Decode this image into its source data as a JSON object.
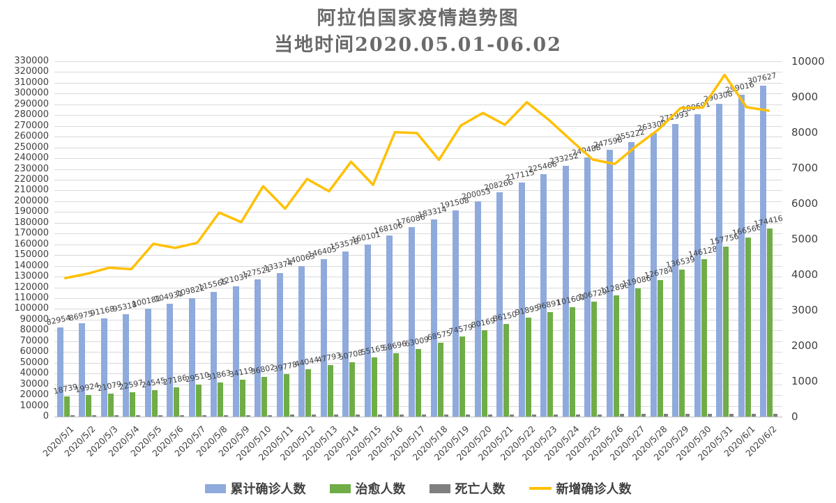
{
  "title": {
    "line1": "阿拉伯国家疫情趋势图",
    "line2": "当地时间2020.05.01-06.02"
  },
  "chart_data": {
    "type": "bar",
    "subtype": "combo-bar-line-dual-axis",
    "title": "阿拉伯国家疫情趋势图 当地时间2020.05.01-06.02",
    "grid": true,
    "legend_position": "bottom",
    "left_axis": {
      "min": 0,
      "max": 330000,
      "step": 10000
    },
    "right_axis": {
      "min": 0,
      "max": 10000,
      "step": 1000
    },
    "categories": [
      "2020/5/1",
      "2020/5/2",
      "2020/5/3",
      "2020/5/4",
      "2020/5/5",
      "2020/5/6",
      "2020/5/7",
      "2020/5/8",
      "2020/5/9",
      "2020/5/10",
      "2020/5/11",
      "2020/5/12",
      "2020/5/13",
      "2020/5/14",
      "2020/5/15",
      "2020/5/16",
      "2020/5/17",
      "2020/5/18",
      "2020/5/19",
      "2020/5/20",
      "2020/5/21",
      "2020/5/22",
      "2020/5/23",
      "2020/5/24",
      "2020/5/25",
      "2020/5/26",
      "2020/5/27",
      "2020/5/28",
      "2020/5/29",
      "2020/5/30",
      "2020/5/31",
      "2020/6/1",
      "2020/6/2"
    ],
    "series": [
      {
        "name": "累计确诊人数",
        "type": "bar",
        "axis": "left",
        "color": "#8FAADC",
        "labels": true,
        "values": [
          82954,
          86975,
          91168,
          95318,
          100181,
          104931,
          109822,
          115565,
          121037,
          127521,
          133374,
          140063,
          146405,
          153578,
          160101,
          168106,
          176086,
          183314,
          191508,
          200053,
          208266,
          217115,
          225466,
          233252,
          240488,
          247598,
          255222,
          263309,
          271993,
          280691,
          290308,
          299016,
          307627
        ]
      },
      {
        "name": "治愈人数",
        "type": "bar",
        "axis": "left",
        "color": "#70AD47",
        "labels": true,
        "values": [
          18739,
          19924,
          21079,
          22597,
          24545,
          27186,
          29510,
          31863,
          34119,
          36802,
          39778,
          44044,
          47793,
          50708,
          55165,
          58696,
          63009,
          68575,
          74579,
          80169,
          86150,
          91895,
          96891,
          101601,
          106729,
          112890,
          119086,
          126784,
          136539,
          146128,
          157756,
          166566,
          174416
        ]
      },
      {
        "name": "死亡人数",
        "type": "bar",
        "axis": "left",
        "color": "#7F7F7F",
        "labels": false,
        "values_are_estimates": true,
        "values": [
          1200,
          1240,
          1290,
          1330,
          1380,
          1420,
          1470,
          1510,
          1560,
          1600,
          1640,
          1690,
          1730,
          1780,
          1820,
          1860,
          1900,
          1950,
          1990,
          2030,
          2080,
          2120,
          2160,
          2210,
          2250,
          2290,
          2340,
          2380,
          2430,
          2470,
          2510,
          2560,
          2600
        ]
      },
      {
        "name": "新增确诊人数",
        "type": "line",
        "axis": "right",
        "color": "#FFC000",
        "labels": false,
        "first_value_is_estimate": true,
        "values": [
          3900,
          4021,
          4193,
          4150,
          4863,
          4750,
          4891,
          5743,
          5472,
          6484,
          5853,
          6689,
          6342,
          7173,
          6523,
          8005,
          7980,
          7228,
          8194,
          8545,
          8213,
          8849,
          8351,
          7786,
          7236,
          7110,
          7624,
          8087,
          8684,
          8698,
          9617,
          8708,
          8611
        ]
      }
    ]
  }
}
